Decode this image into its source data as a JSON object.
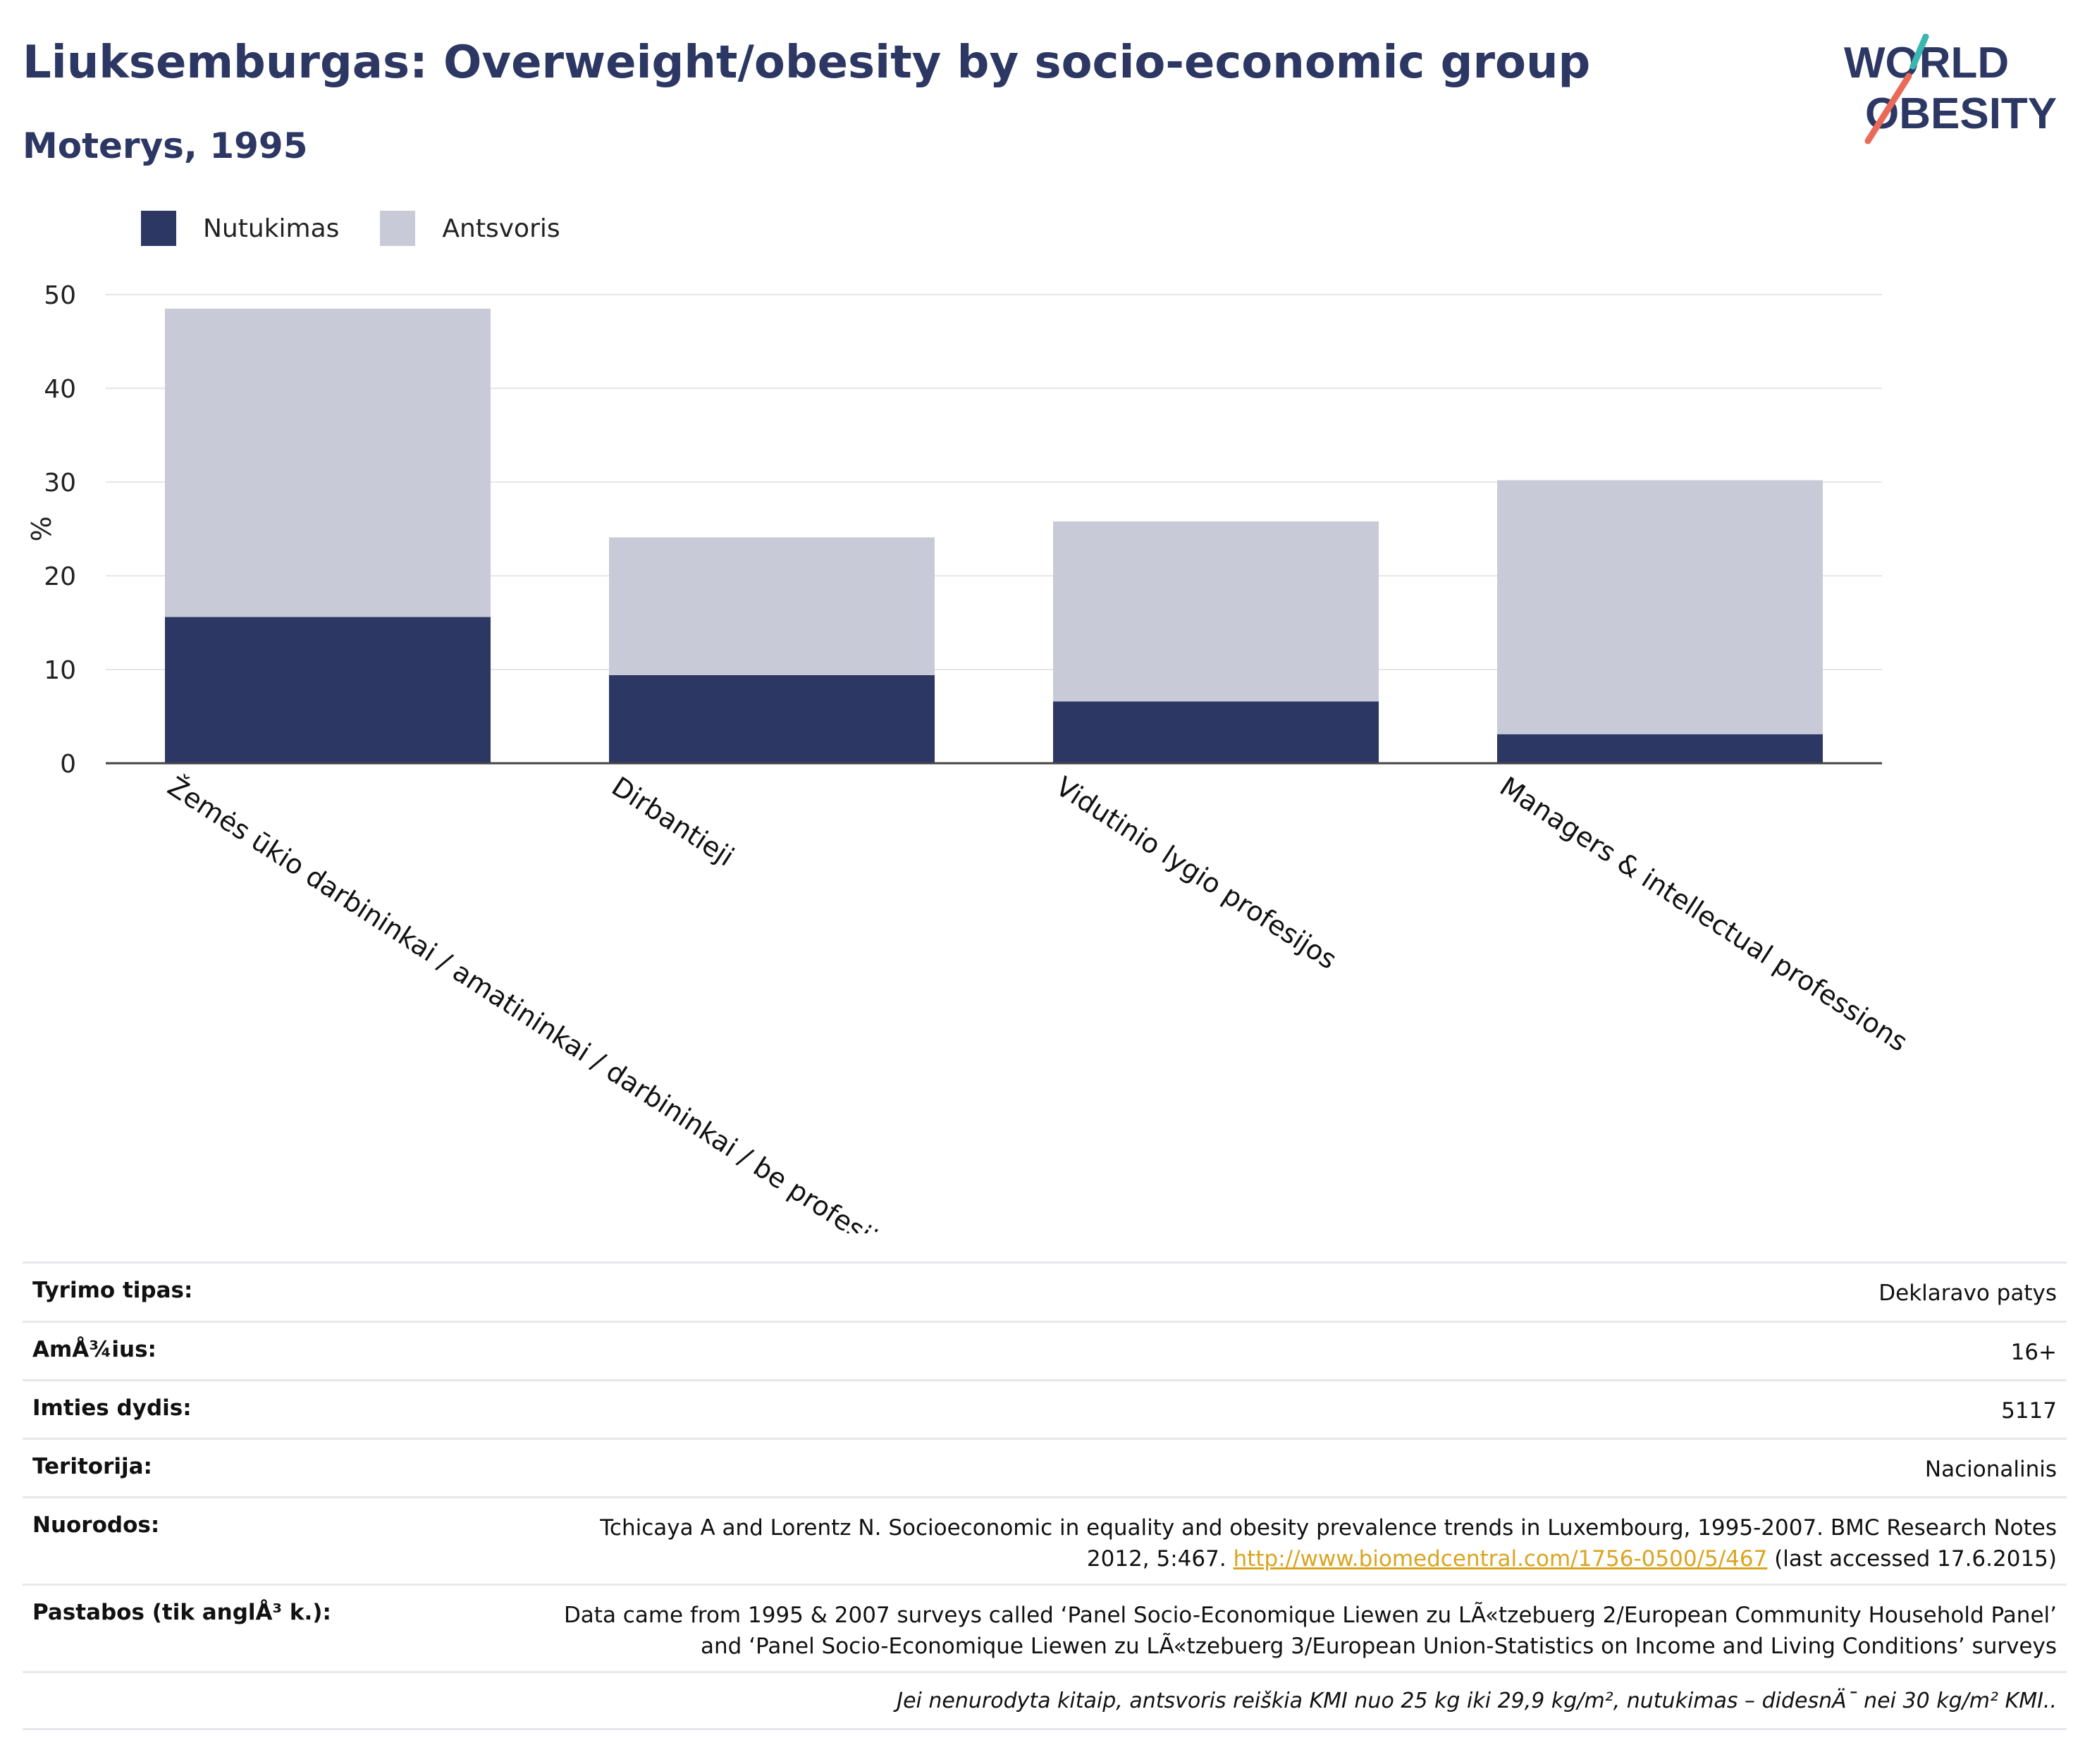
{
  "title": "Liuksemburgas: Overweight/obesity by socio-economic group",
  "subtitle": "Moterys, 1995",
  "logo": {
    "line1": "WORLD",
    "line2": "OBESITY"
  },
  "legend": [
    {
      "label": "Nutukimas",
      "color": "#2c3763"
    },
    {
      "label": "Antsvoris",
      "color": "#c9cad7"
    }
  ],
  "chart_data": {
    "type": "bar",
    "stacked": true,
    "categories": [
      "Žemės ūkio darbininkai / amatininkai / darbininkai / be profesijos",
      "Dirbantieji",
      "Vidutinio lygio profesijos",
      "Managers & intellectual professions"
    ],
    "series": [
      {
        "name": "Nutukimas",
        "values": [
          15.6,
          9.4,
          6.6,
          3.1
        ],
        "color": "#2c3763"
      },
      {
        "name": "Antsvoris",
        "values": [
          32.9,
          14.7,
          19.2,
          27.1
        ],
        "color": "#c9cad7"
      }
    ],
    "ylabel": "%",
    "xlabel": "",
    "ylim": [
      0,
      50
    ],
    "yticks": [
      0,
      10,
      20,
      30,
      40,
      50
    ],
    "grid": true,
    "legend_position": "top-left"
  },
  "info": {
    "study_type": {
      "label": "Tyrimo tipas:",
      "value": "Deklaravo patys"
    },
    "age": {
      "label": "AmÅ¾ius:",
      "value": "16+"
    },
    "sample": {
      "label": "Imties dydis:",
      "value": "5117"
    },
    "territory": {
      "label": "Teritorija:",
      "value": "Nacionalinis"
    },
    "references": {
      "label": "Nuorodos:",
      "text_before": "Tchicaya A and Lorentz N. Socioeconomic in equality and obesity prevalence trends in Luxembourg, 1995-2007. BMC Research Notes 2012, 5:467.",
      "link": "http://www.biomedcentral.com/1756-0500/5/467",
      "text_after": "(last accessed 17.6.2015)"
    },
    "notes": {
      "label": "Pastabos (tik anglÅ³ k.):",
      "value": "Data came from 1995 & 2007 surveys called ‘Panel Socio-Economique Liewen zu LÃ«tzebuerg 2/European Community Household Panel’ and ‘Panel Socio-Economique Liewen zu LÃ«tzebuerg 3/European Union-Statistics on Income and Living Conditions’ surveys"
    },
    "footnote": "Jei nenurodyta kitaip, antsvoris reiškia KMI nuo 25 kg iki 29,9 kg/m², nutukimas – didesnÄ¯ nei 30 kg/m² KMI.."
  }
}
